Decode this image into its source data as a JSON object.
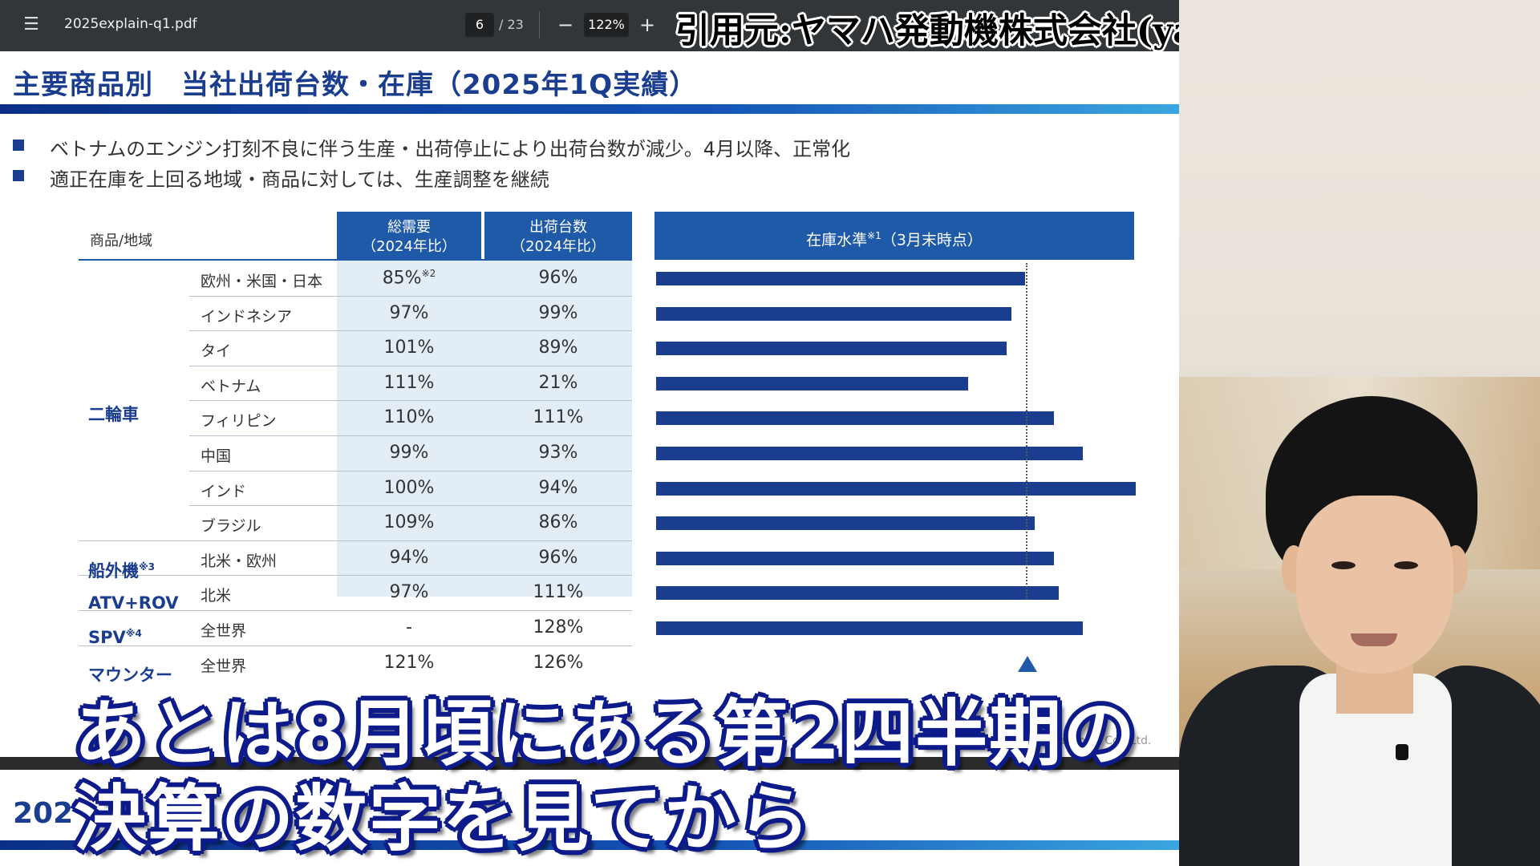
{
  "toolbar": {
    "menu_icon": "menu-icon",
    "file_name": "2025explain-q1.pdf",
    "page_current": "6",
    "page_total": "/ 23",
    "zoom_out": "−",
    "zoom": "122%",
    "zoom_in": "+"
  },
  "credit": "引用元:ヤマハ発動機株式会社(yamaha-motor.com)",
  "slide": {
    "title": "主要商品別　当社出荷台数・在庫（2025年1Q実績）",
    "bullets": [
      "ベトナムのエンジン打刻不良に伴う生産・出荷停止により出荷台数が減少。4月以降、正常化",
      "適正在庫を上回る地域・商品に対しては、生産調整を継続"
    ],
    "header_label": "商品/地域",
    "header_demand": "総需要",
    "header_demand_sub": "（2024年比）",
    "header_ship": "出荷台数",
    "header_ship_sub": "（2024年比）",
    "header_stock": "在庫水準",
    "header_stock_sup": "※1",
    "header_stock_note": "（3月末時点）",
    "categories": {
      "motorcycle": "二輪車",
      "outboard": "船外機",
      "outboard_note": "※3",
      "atv": "ATV+ROV",
      "spv": "SPV",
      "spv_note": "※4",
      "counter": "マウンター"
    },
    "rows": [
      {
        "region": "欧州・米国・日本",
        "demand": "85%",
        "demand_note": "※2",
        "ship": "96%",
        "stock": 0.77
      },
      {
        "region": "インドネシア",
        "demand": "97%",
        "ship": "99%",
        "stock": 0.74
      },
      {
        "region": "タイ",
        "demand": "101%",
        "ship": "89%",
        "stock": 0.73
      },
      {
        "region": "ベトナム",
        "demand": "111%",
        "ship": "21%",
        "stock": 0.65
      },
      {
        "region": "フィリピン",
        "demand": "110%",
        "ship": "111%",
        "stock": 0.83
      },
      {
        "region": "中国",
        "demand": "99%",
        "ship": "93%",
        "stock": 0.89
      },
      {
        "region": "インド",
        "demand": "100%",
        "ship": "94%",
        "stock": 1.0
      },
      {
        "region": "ブラジル",
        "demand": "109%",
        "ship": "86%",
        "stock": 0.79
      },
      {
        "region": "北米・欧州",
        "demand": "94%",
        "ship": "96%",
        "stock": 0.83
      },
      {
        "region": "北米",
        "demand": "97%",
        "ship": "111%",
        "stock": 0.84
      },
      {
        "region": "全世界",
        "demand": "-",
        "ship": "128%",
        "stock": 0.89
      },
      {
        "region": "全世界",
        "demand": "121%",
        "ship": "126%",
        "stock": 0
      }
    ],
    "copyright": "aha Motor Co., Ltd."
  },
  "next_slide_title": "202",
  "subtitles": {
    "line1": "あとは8月頃にある第2四半期の",
    "line2": "決算の数字を見てから"
  },
  "colors": {
    "brand_blue": "#1a3d8f",
    "header_blue": "#1f5aa8",
    "subtitle_outline": "#0d1a8a"
  }
}
